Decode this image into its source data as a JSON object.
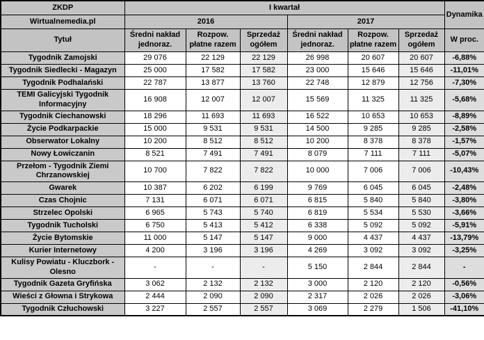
{
  "table": {
    "corner_top": "ZKDP",
    "corner_brand": "Wirtualnemedia.pl",
    "quarter_label": "I kwartał",
    "dynamics_label": "Dynamika",
    "dynamics_unit": "W proc.",
    "title_header": "Tytuł",
    "years": [
      "2016",
      "2017"
    ],
    "metric_headers": [
      "Średni nakład jednoraz.",
      "Rozpow. płatne razem",
      "Sprzedaż ogółem"
    ],
    "rows": [
      {
        "title": "Tygodnik Zamojski",
        "v2016": [
          "29 076",
          "22 129",
          "22 129"
        ],
        "v2017": [
          "26 998",
          "20 607",
          "20 607"
        ],
        "dyn": "-6,88%"
      },
      {
        "title": "Tygodnik Siedlecki - Magazyn",
        "v2016": [
          "25 000",
          "17 582",
          "17 582"
        ],
        "v2017": [
          "23 000",
          "15 646",
          "15 646"
        ],
        "dyn": "-11,01%"
      },
      {
        "title": "Tygodnik Podhalański",
        "v2016": [
          "22 787",
          "13 877",
          "13 760"
        ],
        "v2017": [
          "22 748",
          "12 879",
          "12 756"
        ],
        "dyn": "-7,30%"
      },
      {
        "title": "TEMI Galicyjski Tygodnik Informacyjny",
        "v2016": [
          "16 908",
          "12 007",
          "12 007"
        ],
        "v2017": [
          "15 569",
          "11 325",
          "11 325"
        ],
        "dyn": "-5,68%"
      },
      {
        "title": "Tygodnik Ciechanowski",
        "v2016": [
          "18 296",
          "11 693",
          "11 693"
        ],
        "v2017": [
          "16 522",
          "10 653",
          "10 653"
        ],
        "dyn": "-8,89%"
      },
      {
        "title": "Życie Podkarpackie",
        "v2016": [
          "15 000",
          "9 531",
          "9 531"
        ],
        "v2017": [
          "14 500",
          "9 285",
          "9 285"
        ],
        "dyn": "-2,58%"
      },
      {
        "title": "Obserwator Lokalny",
        "v2016": [
          "10 200",
          "8 512",
          "8 512"
        ],
        "v2017": [
          "10 200",
          "8 378",
          "8 378"
        ],
        "dyn": "-1,57%"
      },
      {
        "title": "Nowy Łowiczanin",
        "v2016": [
          "8 521",
          "7 491",
          "7 491"
        ],
        "v2017": [
          "8 079",
          "7 111",
          "7 111"
        ],
        "dyn": "-5,07%"
      },
      {
        "title": "Przełom - Tygodnik Ziemi Chrzanowskiej",
        "v2016": [
          "10 700",
          "7 822",
          "7 822"
        ],
        "v2017": [
          "10 000",
          "7 006",
          "7 006"
        ],
        "dyn": "-10,43%"
      },
      {
        "title": "Gwarek",
        "v2016": [
          "10 387",
          "6 202",
          "6 199"
        ],
        "v2017": [
          "9 769",
          "6 045",
          "6 045"
        ],
        "dyn": "-2,48%"
      },
      {
        "title": "Czas Chojnic",
        "v2016": [
          "7 131",
          "6 071",
          "6 071"
        ],
        "v2017": [
          "6 815",
          "5 840",
          "5 840"
        ],
        "dyn": "-3,80%"
      },
      {
        "title": "Strzelec Opolski",
        "v2016": [
          "6 965",
          "5 743",
          "5 740"
        ],
        "v2017": [
          "6 819",
          "5 534",
          "5 530"
        ],
        "dyn": "-3,66%"
      },
      {
        "title": "Tygodnik Tucholski",
        "v2016": [
          "6 750",
          "5 413",
          "5 412"
        ],
        "v2017": [
          "6 338",
          "5 092",
          "5 092"
        ],
        "dyn": "-5,91%"
      },
      {
        "title": "Życie Bytomskie",
        "v2016": [
          "11 000",
          "5 147",
          "5 147"
        ],
        "v2017": [
          "9 000",
          "4 437",
          "4 437"
        ],
        "dyn": "-13,79%"
      },
      {
        "title": "Kurier Internetowy",
        "v2016": [
          "4 200",
          "3 196",
          "3 196"
        ],
        "v2017": [
          "4 269",
          "3 092",
          "3 092"
        ],
        "dyn": "-3,25%"
      },
      {
        "title": "Kulisy Powiatu - Kluczbork - Olesno",
        "v2016": [
          "-",
          "-",
          "-"
        ],
        "v2017": [
          "5 150",
          "2 844",
          "2 844"
        ],
        "dyn": "-"
      },
      {
        "title": "Tygodnik Gazeta Gryfińska",
        "v2016": [
          "3 062",
          "2 132",
          "2 132"
        ],
        "v2017": [
          "3 000",
          "2 120",
          "2 120"
        ],
        "dyn": "-0,56%"
      },
      {
        "title": "Wieści z Głowna i Strykowa",
        "v2016": [
          "2 444",
          "2 090",
          "2 090"
        ],
        "v2017": [
          "2 317",
          "2 026",
          "2 026"
        ],
        "dyn": "-3,06%"
      },
      {
        "title": "Tygodnik Człuchowski",
        "v2016": [
          "3 227",
          "2 557",
          "2 557"
        ],
        "v2017": [
          "3 069",
          "2 279",
          "1 506"
        ],
        "dyn": "-41,10%"
      }
    ]
  },
  "colors": {
    "header_bg": "#c3c3c3",
    "title_col_bg": "#c9c9c9",
    "sales_col_bg": "#ececec",
    "dynamics_col_bg": "#dddddd",
    "border": "#000000"
  },
  "chart_data": {
    "type": "table",
    "title": "ZKDP / Wirtualnemedia.pl — I kwartał 2016 vs 2017",
    "columns": [
      "Tytuł",
      "2016 Średni nakład jednoraz.",
      "2016 Rozpow. płatne razem",
      "2016 Sprzedaż ogółem",
      "2017 Średni nakład jednoraz.",
      "2017 Rozpow. płatne razem",
      "2017 Sprzedaż ogółem",
      "Dynamika W proc."
    ],
    "rows": [
      [
        "Tygodnik Zamojski",
        29076,
        22129,
        22129,
        26998,
        20607,
        20607,
        "-6,88%"
      ],
      [
        "Tygodnik Siedlecki - Magazyn",
        25000,
        17582,
        17582,
        23000,
        15646,
        15646,
        "-11,01%"
      ],
      [
        "Tygodnik Podhalański",
        22787,
        13877,
        13760,
        22748,
        12879,
        12756,
        "-7,30%"
      ],
      [
        "TEMI Galicyjski Tygodnik Informacyjny",
        16908,
        12007,
        12007,
        15569,
        11325,
        11325,
        "-5,68%"
      ],
      [
        "Tygodnik Ciechanowski",
        18296,
        11693,
        11693,
        16522,
        10653,
        10653,
        "-8,89%"
      ],
      [
        "Życie Podkarpackie",
        15000,
        9531,
        9531,
        14500,
        9285,
        9285,
        "-2,58%"
      ],
      [
        "Obserwator Lokalny",
        10200,
        8512,
        8512,
        10200,
        8378,
        8378,
        "-1,57%"
      ],
      [
        "Nowy Łowiczanin",
        8521,
        7491,
        7491,
        8079,
        7111,
        7111,
        "-5,07%"
      ],
      [
        "Przełom - Tygodnik Ziemi Chrzanowskiej",
        10700,
        7822,
        7822,
        10000,
        7006,
        7006,
        "-10,43%"
      ],
      [
        "Gwarek",
        10387,
        6202,
        6199,
        9769,
        6045,
        6045,
        "-2,48%"
      ],
      [
        "Czas Chojnic",
        7131,
        6071,
        6071,
        6815,
        5840,
        5840,
        "-3,80%"
      ],
      [
        "Strzelec Opolski",
        6965,
        5743,
        5740,
        6819,
        5534,
        5530,
        "-3,66%"
      ],
      [
        "Tygodnik Tucholski",
        6750,
        5413,
        5412,
        6338,
        5092,
        5092,
        "-5,91%"
      ],
      [
        "Życie Bytomskie",
        11000,
        5147,
        5147,
        9000,
        4437,
        4437,
        "-13,79%"
      ],
      [
        "Kurier Internetowy",
        4200,
        3196,
        3196,
        4269,
        3092,
        3092,
        "-3,25%"
      ],
      [
        "Kulisy Powiatu - Kluczbork - Olesno",
        null,
        null,
        null,
        5150,
        2844,
        2844,
        "-"
      ],
      [
        "Tygodnik Gazeta Gryfińska",
        3062,
        2132,
        2132,
        3000,
        2120,
        2120,
        "-0,56%"
      ],
      [
        "Wieści z Głowna i Strykowa",
        2444,
        2090,
        2090,
        2317,
        2026,
        2026,
        "-3,06%"
      ],
      [
        "Tygodnik Człuchowski",
        3227,
        2557,
        2557,
        3069,
        2279,
        1506,
        "-41,10%"
      ]
    ]
  }
}
